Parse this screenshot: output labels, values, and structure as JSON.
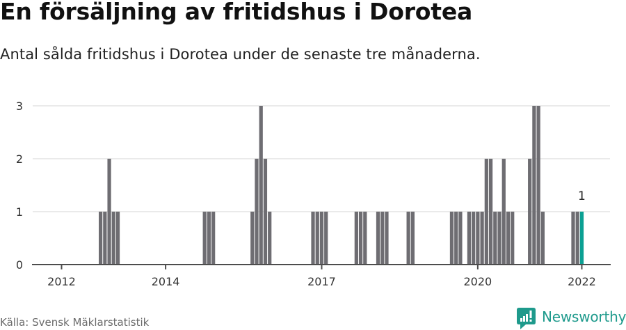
{
  "header": {
    "title": "En försäljning av fritidshus i Dorotea",
    "subtitle": "Antal sålda fritidshus i Dorotea under de senaste tre månaderna."
  },
  "footer": {
    "source": "Källa: Svensk Mäklarstatistik",
    "brand": "Newsworthy",
    "brand_icon": "newsworthy-logo-icon"
  },
  "colors": {
    "bar": "#6e6d72",
    "highlight": "#0ba093",
    "grid": "#e3e3e3",
    "axis": "#4d4d4d",
    "brand": "#1e9a8c"
  },
  "chart_data": {
    "type": "bar",
    "title": "En försäljning av fritidshus i Dorotea",
    "subtitle": "Antal sålda fritidshus i Dorotea under de senaste tre månaderna.",
    "xlabel": "",
    "ylabel": "",
    "ylim": [
      0,
      3
    ],
    "yticks": [
      0,
      1,
      2,
      3
    ],
    "grid": true,
    "legend": null,
    "xticks": [
      {
        "label": "2012",
        "category": "2012-01"
      },
      {
        "label": "2014",
        "category": "2014-01"
      },
      {
        "label": "2017",
        "category": "2017-01"
      },
      {
        "label": "2020",
        "category": "2020-01"
      },
      {
        "label": "2022",
        "category": "2022-01"
      }
    ],
    "categories": [
      "2012-01",
      "2012-02",
      "2012-03",
      "2012-04",
      "2012-05",
      "2012-06",
      "2012-07",
      "2012-08",
      "2012-09",
      "2012-10",
      "2012-11",
      "2012-12",
      "2013-01",
      "2013-02",
      "2013-03",
      "2013-04",
      "2013-05",
      "2013-06",
      "2013-07",
      "2013-08",
      "2013-09",
      "2013-10",
      "2013-11",
      "2013-12",
      "2014-01",
      "2014-02",
      "2014-03",
      "2014-04",
      "2014-05",
      "2014-06",
      "2014-07",
      "2014-08",
      "2014-09",
      "2014-10",
      "2014-11",
      "2014-12",
      "2015-01",
      "2015-02",
      "2015-03",
      "2015-04",
      "2015-05",
      "2015-06",
      "2015-07",
      "2015-08",
      "2015-09",
      "2015-10",
      "2015-11",
      "2015-12",
      "2016-01",
      "2016-02",
      "2016-03",
      "2016-04",
      "2016-05",
      "2016-06",
      "2016-07",
      "2016-08",
      "2016-09",
      "2016-10",
      "2016-11",
      "2016-12",
      "2017-01",
      "2017-02",
      "2017-03",
      "2017-04",
      "2017-05",
      "2017-06",
      "2017-07",
      "2017-08",
      "2017-09",
      "2017-10",
      "2017-11",
      "2017-12",
      "2018-01",
      "2018-02",
      "2018-03",
      "2018-04",
      "2018-05",
      "2018-06",
      "2018-07",
      "2018-08",
      "2018-09",
      "2018-10",
      "2018-11",
      "2018-12",
      "2019-01",
      "2019-02",
      "2019-03",
      "2019-04",
      "2019-05",
      "2019-06",
      "2019-07",
      "2019-08",
      "2019-09",
      "2019-10",
      "2019-11",
      "2019-12",
      "2020-01",
      "2020-02",
      "2020-03",
      "2020-04",
      "2020-05",
      "2020-06",
      "2020-07",
      "2020-08",
      "2020-09",
      "2020-10",
      "2020-11",
      "2020-12",
      "2021-01",
      "2021-02",
      "2021-03",
      "2021-04",
      "2021-05",
      "2021-06",
      "2021-07",
      "2021-08",
      "2021-09",
      "2021-10",
      "2021-11",
      "2021-12",
      "2022-01"
    ],
    "values": [
      0,
      0,
      0,
      0,
      0,
      0,
      0,
      0,
      0,
      1,
      1,
      2,
      1,
      1,
      0,
      0,
      0,
      0,
      0,
      0,
      0,
      0,
      0,
      0,
      0,
      0,
      0,
      0,
      0,
      0,
      0,
      0,
      0,
      1,
      1,
      1,
      0,
      0,
      0,
      0,
      0,
      0,
      0,
      0,
      1,
      2,
      3,
      2,
      1,
      0,
      0,
      0,
      0,
      0,
      0,
      0,
      0,
      0,
      1,
      1,
      1,
      1,
      0,
      0,
      0,
      0,
      0,
      0,
      1,
      1,
      1,
      0,
      0,
      1,
      1,
      1,
      0,
      0,
      0,
      0,
      1,
      1,
      0,
      0,
      0,
      0,
      0,
      0,
      0,
      0,
      1,
      1,
      1,
      0,
      1,
      1,
      1,
      1,
      2,
      2,
      1,
      1,
      2,
      1,
      1,
      0,
      0,
      0,
      2,
      3,
      3,
      1,
      0,
      0,
      0,
      0,
      0,
      0,
      1,
      1,
      1
    ],
    "highlight": {
      "category": "2022-01",
      "value": 1,
      "label": "1"
    }
  }
}
